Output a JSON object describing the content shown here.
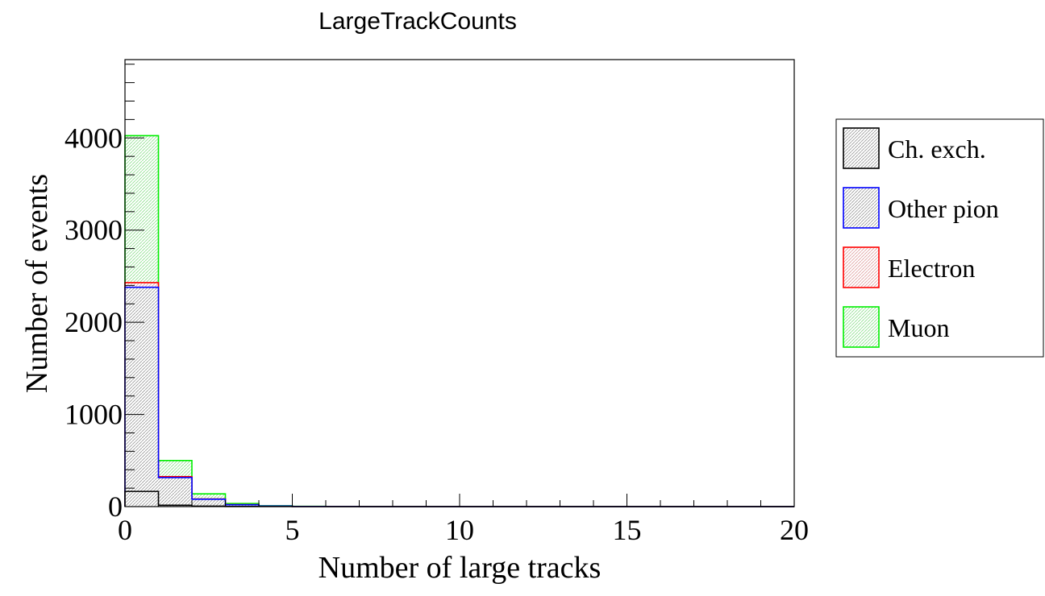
{
  "chart_data": {
    "type": "histogram",
    "title": "LargeTrackCounts",
    "xlabel": "Number of large tracks",
    "ylabel": "Number of events",
    "xlim": [
      0,
      20
    ],
    "ylim": [
      0,
      4850
    ],
    "x_ticks": [
      0,
      5,
      10,
      15,
      20
    ],
    "y_ticks": [
      0,
      1000,
      2000,
      3000,
      4000
    ],
    "bin_edges": [
      0,
      1,
      2,
      3,
      4,
      5,
      6,
      7,
      8,
      9,
      10,
      11,
      12,
      13,
      14,
      15,
      16,
      17,
      18,
      19,
      20
    ],
    "stacked": true,
    "legend_position": "right",
    "series": [
      {
        "name": "Ch. exch.",
        "color": "#000000",
        "values": [
          165,
          15,
          5,
          2,
          1,
          0,
          0,
          0,
          0,
          0,
          0,
          0,
          0,
          0,
          0,
          0,
          0,
          0,
          0,
          0
        ]
      },
      {
        "name": "Other pion",
        "color": "#0000ff",
        "values": [
          2215,
          300,
          75,
          18,
          5,
          2,
          1,
          0,
          0,
          0,
          0,
          0,
          0,
          0,
          0,
          0,
          0,
          0,
          0,
          0
        ]
      },
      {
        "name": "Electron",
        "color": "#ff0000",
        "values": [
          50,
          10,
          3,
          1,
          0,
          0,
          0,
          0,
          0,
          0,
          0,
          0,
          0,
          0,
          0,
          0,
          0,
          0,
          0,
          0
        ]
      },
      {
        "name": "Muon",
        "color": "#00ee00",
        "values": [
          1595,
          175,
          55,
          12,
          3,
          1,
          0,
          0,
          0,
          0,
          0,
          0,
          0,
          0,
          0,
          0,
          0,
          0,
          0,
          0
        ]
      }
    ]
  }
}
